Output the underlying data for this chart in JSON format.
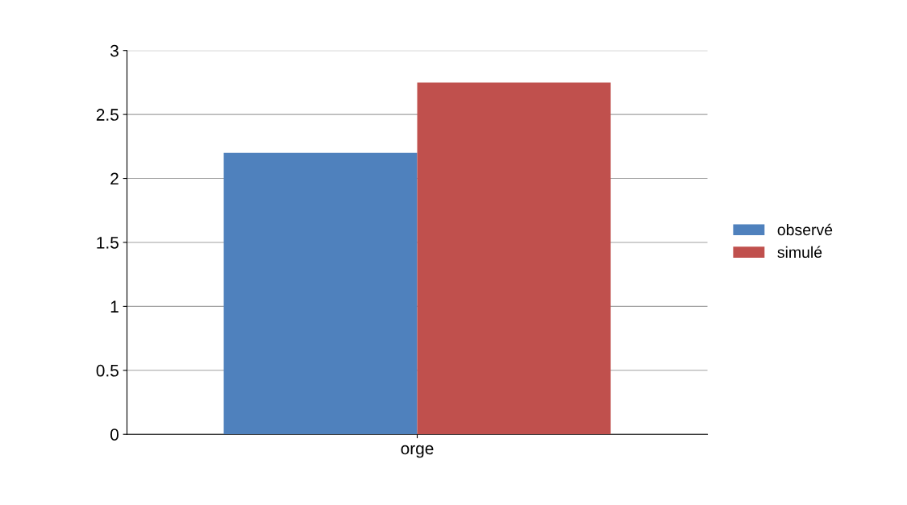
{
  "chart_data": {
    "type": "bar",
    "categories": [
      "orge"
    ],
    "series": [
      {
        "name": "observé",
        "color": "#4f81bd",
        "values": [
          2.2
        ]
      },
      {
        "name": "simulé",
        "color": "#c0504d",
        "values": [
          2.75
        ]
      }
    ],
    "ylim": [
      0,
      3
    ],
    "yticks": [
      0,
      0.5,
      1,
      1.5,
      2,
      2.5,
      3
    ],
    "grid": "y",
    "legend": "right"
  }
}
